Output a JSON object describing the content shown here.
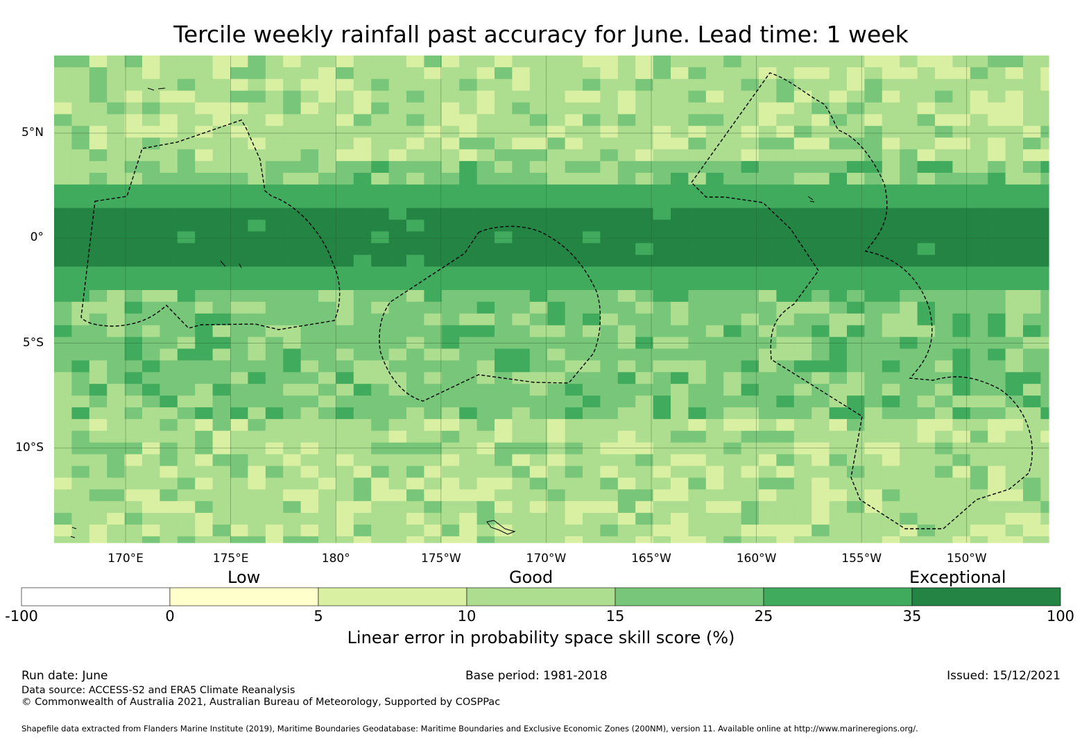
{
  "title": "Tercile weekly rainfall past accuracy for June. Lead time: 1 week",
  "map": {
    "lat_ticks": [
      {
        "value": 5,
        "label": "5°N"
      },
      {
        "value": 0,
        "label": "0°"
      },
      {
        "value": -5,
        "label": "5°S"
      },
      {
        "value": -10,
        "label": "10°S"
      }
    ],
    "lon_ticks": [
      {
        "value": 170,
        "label": "170°E"
      },
      {
        "value": 175,
        "label": "175°E"
      },
      {
        "value": 180,
        "label": "180°"
      },
      {
        "value": 185,
        "label": "175°W"
      },
      {
        "value": 190,
        "label": "170°W"
      },
      {
        "value": 195,
        "label": "165°W"
      },
      {
        "value": 200,
        "label": "160°W"
      },
      {
        "value": 205,
        "label": "155°W"
      },
      {
        "value": 210,
        "label": "150°W"
      }
    ],
    "lon_range": [
      166.6,
      213.9
    ],
    "lat_range": [
      -14.5,
      8.7
    ],
    "zonal_skill_bands": [
      {
        "lat_range": [
          6.5,
          8.7
        ],
        "class": 3
      },
      {
        "lat_range": [
          3.8,
          6.5
        ],
        "class": 3
      },
      {
        "lat_range": [
          2.7,
          3.8
        ],
        "class": 4
      },
      {
        "lat_range": [
          1.6,
          2.7
        ],
        "class": 5
      },
      {
        "lat_range": [
          -1.2,
          1.6
        ],
        "class": 6
      },
      {
        "lat_range": [
          -2.3,
          -1.2
        ],
        "class": 5
      },
      {
        "lat_range": [
          -4.0,
          -2.3
        ],
        "class": 4
      },
      {
        "lat_range": [
          -8.5,
          -4.0
        ],
        "class": 4
      },
      {
        "lat_range": [
          -14.5,
          -8.5
        ],
        "class": 3
      }
    ]
  },
  "colorbar": {
    "boundaries": [
      "-100",
      "0",
      "5",
      "10",
      "15",
      "25",
      "35",
      "100"
    ],
    "colors": [
      "#ffffff",
      "#ffffcc",
      "#d9f0a3",
      "#addd8e",
      "#78c679",
      "#41ab5d",
      "#238443"
    ],
    "category_labels": [
      "Low",
      "Good",
      "Exceptional"
    ],
    "title": "Linear error in probability space skill score (%)"
  },
  "footer": {
    "run_date": "Run date: June",
    "base_period": "Base period: 1981-2018",
    "issued": "Issued: 15/12/2021",
    "data_source": "Data source: ACCESS-S2 and ERA5 Climate Reanalysis",
    "copyright": "© Commonwealth of Australia 2021, Australian Bureau of Meteorology, Supported by COSPPac",
    "shapefile": "Shapefile data extracted from Flanders Marine Institute (2019), Maritime Boundaries Geodatabase: Maritime Boundaries and Exclusive Economic Zones (200NM), version 11. Available online at http://www.marineregions.org/."
  }
}
